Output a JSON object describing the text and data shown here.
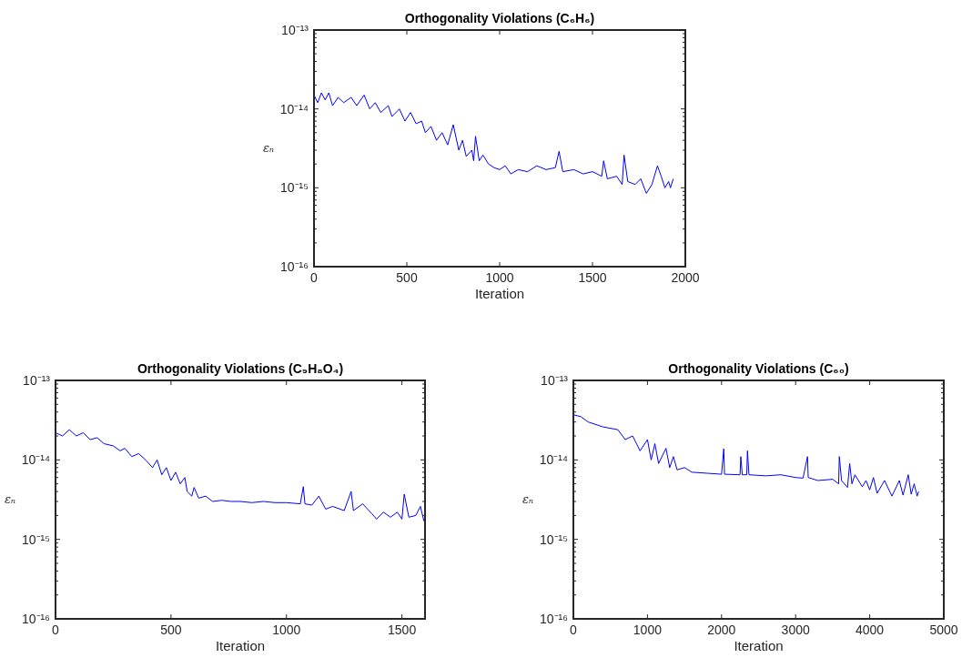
{
  "chart_data": [
    {
      "type": "line",
      "title": "Orthogonality Violations (C₆H₆)",
      "xlabel": "Iteration",
      "ylabel": "εₙ",
      "log": "y",
      "xlim": [
        0,
        2000
      ],
      "xticks": [
        0,
        500,
        1000,
        1500,
        2000
      ],
      "ylim": [
        1e-16,
        1e-13
      ],
      "yticks": [
        {
          "value": 1e-16,
          "label": "10⁻¹⁶"
        },
        {
          "value": 2e-16,
          "label": null
        },
        {
          "value": 3e-16,
          "label": null
        },
        {
          "value": 4e-16,
          "label": null
        },
        {
          "value": 5e-16,
          "label": null
        },
        {
          "value": 6e-16,
          "label": null
        },
        {
          "value": 7e-16,
          "label": null
        },
        {
          "value": 8e-16,
          "label": null
        },
        {
          "value": 9e-16,
          "label": null
        },
        {
          "value": 1e-15,
          "label": "10⁻¹⁵"
        },
        {
          "value": 2e-15,
          "label": null
        },
        {
          "value": 3e-15,
          "label": null
        },
        {
          "value": 4e-15,
          "label": null
        },
        {
          "value": 5e-15,
          "label": null
        },
        {
          "value": 6e-15,
          "label": null
        },
        {
          "value": 7e-15,
          "label": null
        },
        {
          "value": 8e-15,
          "label": null
        },
        {
          "value": 9e-15,
          "label": null
        },
        {
          "value": 1e-14,
          "label": "10⁻¹⁴"
        },
        {
          "value": 2e-14,
          "label": null
        },
        {
          "value": 3e-14,
          "label": null
        },
        {
          "value": 4e-14,
          "label": null
        },
        {
          "value": 5e-14,
          "label": null
        },
        {
          "value": 6e-14,
          "label": null
        },
        {
          "value": 7e-14,
          "label": null
        },
        {
          "value": 8e-14,
          "label": null
        },
        {
          "value": 9e-14,
          "label": null
        },
        {
          "value": 1e-13,
          "label": "10⁻¹³"
        }
      ],
      "x": [
        0,
        20,
        40,
        60,
        80,
        100,
        130,
        160,
        200,
        230,
        270,
        300,
        330,
        360,
        400,
        420,
        460,
        490,
        520,
        550,
        580,
        600,
        630,
        660,
        690,
        720,
        750,
        780,
        800,
        820,
        850,
        860,
        870,
        890,
        910,
        940,
        970,
        1000,
        1030,
        1060,
        1100,
        1150,
        1200,
        1250,
        1300,
        1320,
        1340,
        1400,
        1450,
        1500,
        1550,
        1560,
        1580,
        1630,
        1660,
        1670,
        1690,
        1730,
        1760,
        1790,
        1820,
        1850,
        1870,
        1890,
        1910,
        1920,
        1935
      ],
      "series": [
        {
          "color": "#0000ff",
          "values": [
            1.5e-14,
            1.2e-14,
            1.6e-14,
            1.3e-14,
            1.6e-14,
            1.1e-14,
            1.4e-14,
            1.2e-14,
            1.4e-14,
            1.1e-14,
            1.5e-14,
            1e-14,
            1.2e-14,
            9e-15,
            1.1e-14,
            8e-15,
            1e-14,
            7e-15,
            9e-15,
            6.5e-15,
            7e-15,
            5e-15,
            6e-15,
            4e-15,
            5e-15,
            3.5e-15,
            6.3e-15,
            3e-15,
            4e-15,
            2.5e-15,
            3e-15,
            2.2e-15,
            4.5e-15,
            2.2e-15,
            2.6e-15,
            2e-15,
            1.8e-15,
            1.7e-15,
            1.9e-15,
            1.5e-15,
            1.7e-15,
            1.6e-15,
            1.9e-15,
            1.7e-15,
            1.8e-15,
            2.9e-15,
            1.6e-15,
            1.7e-15,
            1.5e-15,
            1.6e-15,
            1.4e-15,
            2.2e-15,
            1.3e-15,
            1.4e-15,
            1.1e-15,
            2.6e-15,
            1.2e-15,
            1.1e-15,
            1.3e-15,
            8.5e-16,
            1.1e-15,
            1.9e-15,
            1.4e-15,
            1e-15,
            1.2e-15,
            1e-15,
            1.3e-15
          ]
        }
      ]
    },
    {
      "type": "line",
      "title": "Orthogonality Violations (C₉H₈O₄)",
      "xlabel": "Iteration",
      "ylabel": "εₙ",
      "log": "y",
      "xlim": [
        0,
        1600
      ],
      "xticks": [
        0,
        500,
        1000,
        1500
      ],
      "ylim": [
        1e-16,
        1e-13
      ],
      "yticks": [
        {
          "value": 1e-16,
          "label": "10⁻¹⁶"
        },
        {
          "value": 2e-16,
          "label": null
        },
        {
          "value": 3e-16,
          "label": null
        },
        {
          "value": 4e-16,
          "label": null
        },
        {
          "value": 5e-16,
          "label": null
        },
        {
          "value": 6e-16,
          "label": null
        },
        {
          "value": 7e-16,
          "label": null
        },
        {
          "value": 8e-16,
          "label": null
        },
        {
          "value": 9e-16,
          "label": null
        },
        {
          "value": 1e-15,
          "label": "10⁻¹⁵"
        },
        {
          "value": 2e-15,
          "label": null
        },
        {
          "value": 3e-15,
          "label": null
        },
        {
          "value": 4e-15,
          "label": null
        },
        {
          "value": 5e-15,
          "label": null
        },
        {
          "value": 6e-15,
          "label": null
        },
        {
          "value": 7e-15,
          "label": null
        },
        {
          "value": 8e-15,
          "label": null
        },
        {
          "value": 9e-15,
          "label": null
        },
        {
          "value": 1e-14,
          "label": "10⁻¹⁴"
        },
        {
          "value": 2e-14,
          "label": null
        },
        {
          "value": 3e-14,
          "label": null
        },
        {
          "value": 4e-14,
          "label": null
        },
        {
          "value": 5e-14,
          "label": null
        },
        {
          "value": 6e-14,
          "label": null
        },
        {
          "value": 7e-14,
          "label": null
        },
        {
          "value": 8e-14,
          "label": null
        },
        {
          "value": 9e-14,
          "label": null
        },
        {
          "value": 1e-13,
          "label": "10⁻¹³"
        }
      ],
      "x": [
        0,
        30,
        60,
        90,
        120,
        150,
        180,
        210,
        250,
        280,
        300,
        330,
        360,
        390,
        420,
        440,
        460,
        480,
        500,
        520,
        540,
        560,
        570,
        590,
        600,
        620,
        650,
        680,
        720,
        760,
        800,
        850,
        900,
        950,
        1000,
        1060,
        1073,
        1080,
        1110,
        1140,
        1170,
        1200,
        1250,
        1280,
        1290,
        1330,
        1370,
        1390,
        1420,
        1450,
        1480,
        1500,
        1510,
        1530,
        1560,
        1580,
        1595
      ],
      "series": [
        {
          "color": "#0000ff",
          "values": [
            2.2e-14,
            2e-14,
            2.4e-14,
            2e-14,
            2.2e-14,
            1.8e-14,
            1.9e-14,
            1.6e-14,
            1.5e-14,
            1.3e-14,
            1.4e-14,
            1.1e-14,
            1.2e-14,
            1e-14,
            8e-15,
            1e-14,
            6.5e-15,
            8e-15,
            5.5e-15,
            7e-15,
            5e-15,
            6e-15,
            4e-15,
            3.5e-15,
            4.5e-15,
            3.3e-15,
            3.5e-15,
            3e-15,
            3.1e-15,
            3e-15,
            3e-15,
            2.9e-15,
            3e-15,
            2.9e-15,
            2.9e-15,
            2.8e-15,
            4.6e-15,
            2.8e-15,
            2.7e-15,
            3.5e-15,
            2.4e-15,
            2.6e-15,
            2.3e-15,
            4e-15,
            2.3e-15,
            2.8e-15,
            2.1e-15,
            1.8e-15,
            2.2e-15,
            1.9e-15,
            2.2e-15,
            1.8e-15,
            3.7e-15,
            1.9e-15,
            2e-15,
            2.6e-15,
            1.7e-15
          ]
        }
      ]
    },
    {
      "type": "line",
      "title": "Orthogonality Violations (C₆₀)",
      "xlabel": "Iteration",
      "ylabel": "εₙ",
      "log": "y",
      "xlim": [
        0,
        5000
      ],
      "xticks": [
        0,
        1000,
        2000,
        3000,
        4000,
        5000
      ],
      "ylim": [
        1e-16,
        1e-13
      ],
      "yticks": [
        {
          "value": 1e-16,
          "label": "10⁻¹⁶"
        },
        {
          "value": 2e-16,
          "label": null
        },
        {
          "value": 3e-16,
          "label": null
        },
        {
          "value": 4e-16,
          "label": null
        },
        {
          "value": 5e-16,
          "label": null
        },
        {
          "value": 6e-16,
          "label": null
        },
        {
          "value": 7e-16,
          "label": null
        },
        {
          "value": 8e-16,
          "label": null
        },
        {
          "value": 9e-16,
          "label": null
        },
        {
          "value": 1e-15,
          "label": "10⁻¹⁵"
        },
        {
          "value": 2e-15,
          "label": null
        },
        {
          "value": 3e-15,
          "label": null
        },
        {
          "value": 4e-15,
          "label": null
        },
        {
          "value": 5e-15,
          "label": null
        },
        {
          "value": 6e-15,
          "label": null
        },
        {
          "value": 7e-15,
          "label": null
        },
        {
          "value": 8e-15,
          "label": null
        },
        {
          "value": 9e-15,
          "label": null
        },
        {
          "value": 1e-14,
          "label": "10⁻¹⁴"
        },
        {
          "value": 2e-14,
          "label": null
        },
        {
          "value": 3e-14,
          "label": null
        },
        {
          "value": 4e-14,
          "label": null
        },
        {
          "value": 5e-14,
          "label": null
        },
        {
          "value": 6e-14,
          "label": null
        },
        {
          "value": 7e-14,
          "label": null
        },
        {
          "value": 8e-14,
          "label": null
        },
        {
          "value": 9e-14,
          "label": null
        },
        {
          "value": 1e-13,
          "label": "10⁻¹³"
        }
      ],
      "x": [
        0,
        100,
        200,
        400,
        600,
        700,
        800,
        900,
        1000,
        1050,
        1100,
        1150,
        1250,
        1300,
        1350,
        1400,
        1500,
        1600,
        1800,
        2000,
        2030,
        2040,
        2250,
        2260,
        2280,
        2340,
        2350,
        2370,
        2600,
        2800,
        3000,
        3100,
        3160,
        3170,
        3300,
        3500,
        3580,
        3590,
        3620,
        3700,
        3730,
        3760,
        3800,
        3900,
        3950,
        4000,
        4050,
        4100,
        4200,
        4300,
        4400,
        4450,
        4520,
        4560,
        4600,
        4640,
        4660
      ],
      "series": [
        {
          "color": "#0000ff",
          "values": [
            3.7e-14,
            3.5e-14,
            3e-14,
            2.6e-14,
            2.4e-14,
            1.8e-14,
            2e-14,
            1.3e-14,
            1.8e-14,
            1e-14,
            1.6e-14,
            9e-15,
            1.4e-14,
            8e-15,
            1.1e-14,
            7.5e-15,
            8e-15,
            7e-15,
            6.8e-15,
            6.6e-15,
            1.38e-14,
            6.6e-15,
            6.5e-15,
            1.1e-14,
            6.5e-15,
            6.5e-15,
            1.3e-14,
            6.5e-15,
            6.3e-15,
            6.5e-15,
            6e-15,
            5.9e-15,
            1.1e-14,
            6e-15,
            5.5e-15,
            5.7e-15,
            5e-15,
            1.1e-14,
            5.5e-15,
            4.5e-15,
            9e-15,
            5e-15,
            6.5e-15,
            4.6e-15,
            5.5e-15,
            4.2e-15,
            6e-15,
            3.8e-15,
            5.5e-15,
            3.5e-15,
            5.5e-15,
            3.6e-15,
            6.5e-15,
            3.7e-15,
            5e-15,
            3.5e-15,
            4e-15
          ]
        }
      ]
    }
  ]
}
